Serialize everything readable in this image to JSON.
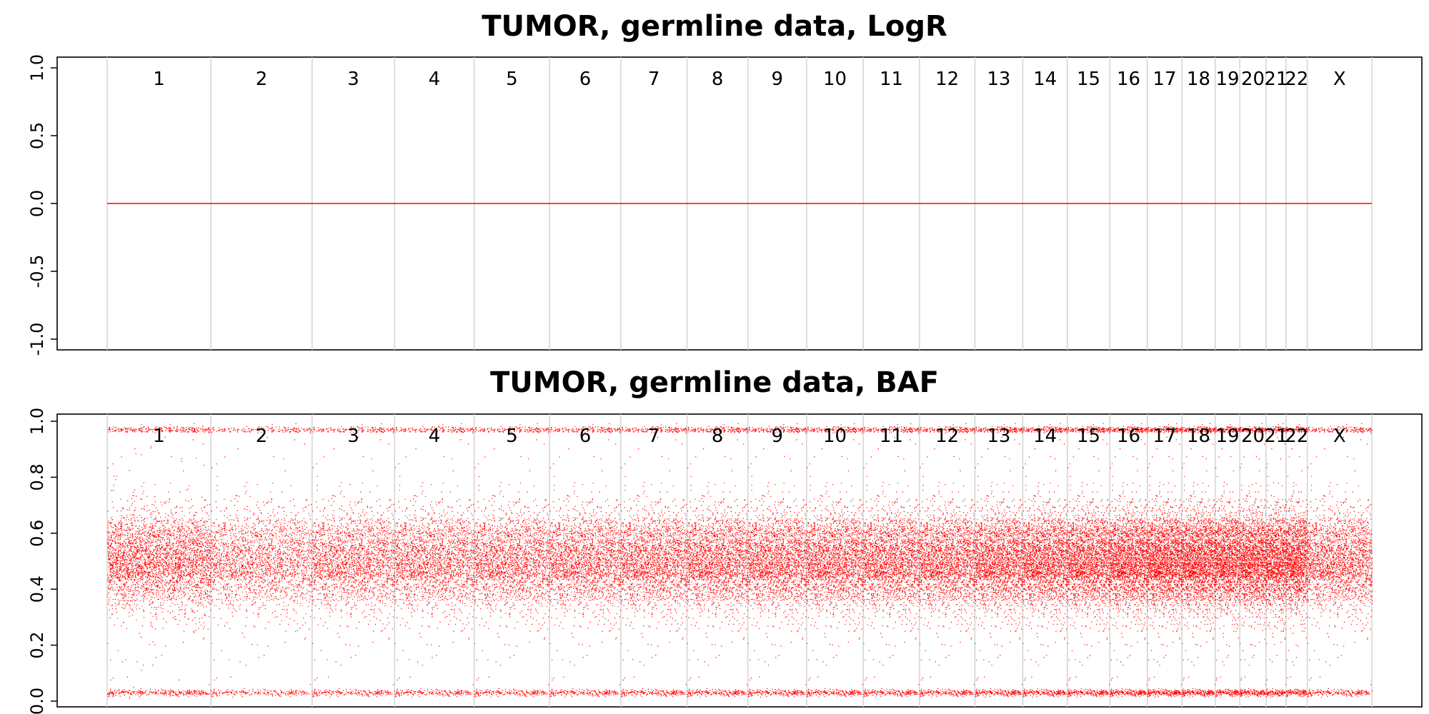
{
  "chart_data": [
    {
      "type": "line",
      "title": "TUMOR, germline data, LogR",
      "xlabel": "",
      "ylabel": "",
      "ylim": [
        -1.0,
        1.0
      ],
      "yticks": [
        "-1.0",
        "-0.5",
        "0.0",
        "0.5",
        "1.0"
      ],
      "chromosomes": [
        "1",
        "2",
        "3",
        "4",
        "5",
        "6",
        "7",
        "8",
        "9",
        "10",
        "11",
        "12",
        "13",
        "14",
        "15",
        "16",
        "17",
        "18",
        "19",
        "20",
        "21",
        "22",
        "X"
      ],
      "series": [
        {
          "values_constant": 0.0
        }
      ],
      "grid": "chromosome boundaries",
      "colors": {
        "data": "#ff0000",
        "boundary": "#d3d3d3"
      }
    },
    {
      "type": "scatter",
      "title": "TUMOR, germline data, BAF",
      "xlabel": "",
      "ylabel": "",
      "ylim": [
        0.0,
        1.0
      ],
      "yticks": [
        "0.0",
        "0.2",
        "0.4",
        "0.6",
        "0.8",
        "1.0"
      ],
      "chromosomes": [
        "1",
        "2",
        "3",
        "4",
        "5",
        "6",
        "7",
        "8",
        "9",
        "10",
        "11",
        "12",
        "13",
        "14",
        "15",
        "16",
        "17",
        "18",
        "19",
        "20",
        "21",
        "22",
        "X"
      ],
      "bands": [
        {
          "center": 0.03,
          "spread": 0.01
        },
        {
          "center": 0.5,
          "spread": 0.08
        },
        {
          "center": 0.97,
          "spread": 0.01
        }
      ],
      "grid": "chromosome boundaries",
      "colors": {
        "data": "#ff0000",
        "boundary": "#d3d3d3"
      }
    }
  ]
}
